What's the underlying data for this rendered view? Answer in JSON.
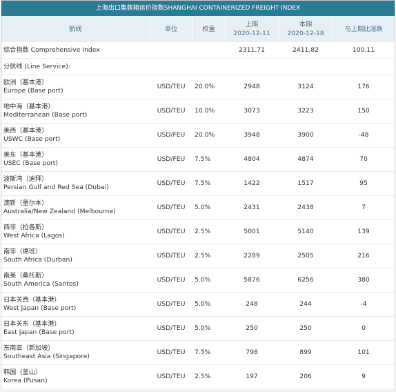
{
  "title": "上海出口集装箱运价指数SHANGHAI CONTAINERIZED FREIGHT INDEX",
  "headers": {
    "route": "航线",
    "unit": "单位",
    "weight": "权重",
    "prev_label": "上期",
    "prev_date": "2020-12-11",
    "curr_label": "本期",
    "curr_date": "2020-12-18",
    "change": "与上期比涨跌"
  },
  "comprehensive": {
    "name": "综合指数 Comprehensive Index",
    "prev": "2311.71",
    "curr": "2411.82",
    "change": "100.11"
  },
  "section_label": "分航线 (Line Service):",
  "routes": [
    {
      "zh": "欧洲（基本港）",
      "en": "Europe (Base port)",
      "unit": "USD/TEU",
      "weight": "20.0%",
      "prev": "2948",
      "curr": "3124",
      "change": "176"
    },
    {
      "zh": "地中海（基本港）",
      "en": "Mediterranean (Base port)",
      "unit": "USD/TEU",
      "weight": "10.0%",
      "prev": "3073",
      "curr": "3223",
      "change": "150"
    },
    {
      "zh": "美西（基本港）",
      "en": "USWC (Base port)",
      "unit": "USD/FEU",
      "weight": "20.0%",
      "prev": "3948",
      "curr": "3900",
      "change": "-48"
    },
    {
      "zh": "美东（基本港）",
      "en": "USEC (Base port)",
      "unit": "USD/FEU",
      "weight": "7.5%",
      "prev": "4804",
      "curr": "4874",
      "change": "70"
    },
    {
      "zh": "波斯湾（迪拜）",
      "en": "Persian Gulf and Red Sea (Dubai)",
      "unit": "USD/TEU",
      "weight": "7.5%",
      "prev": "1422",
      "curr": "1517",
      "change": "95"
    },
    {
      "zh": "澳新（墨尔本）",
      "en": "Australia/New Zealand (Melbourne)",
      "unit": "USD/TEU",
      "weight": "5.0%",
      "prev": "2431",
      "curr": "2438",
      "change": "7"
    },
    {
      "zh": "西非（拉各斯）",
      "en": "West Africa (Lagos)",
      "unit": "USD/TEU",
      "weight": "2.5%",
      "prev": "5001",
      "curr": "5140",
      "change": "139"
    },
    {
      "zh": "南非（德班）",
      "en": "South Africa (Durban)",
      "unit": "USD/TEU",
      "weight": "2.5%",
      "prev": "2289",
      "curr": "2505",
      "change": "216"
    },
    {
      "zh": "南美（桑托斯）",
      "en": "South America (Santos)",
      "unit": "USD/TEU",
      "weight": "5.0%",
      "prev": "5876",
      "curr": "6256",
      "change": "380"
    },
    {
      "zh": "日本关西（基本港）",
      "en": "West Japan (Base port)",
      "unit": "USD/TEU",
      "weight": "5.0%",
      "prev": "248",
      "curr": "244",
      "change": "-4"
    },
    {
      "zh": "日本关东（基本港）",
      "en": "East Japan (Base port)",
      "unit": "USD/TEU",
      "weight": "5.0%",
      "prev": "250",
      "curr": "250",
      "change": "0"
    },
    {
      "zh": "东南亚（新加坡）",
      "en": "Southeast Asia (Singapore)",
      "unit": "USD/TEU",
      "weight": "7.5%",
      "prev": "798",
      "curr": "899",
      "change": "101"
    },
    {
      "zh": "韩国（釜山）",
      "en": "Korea (Pusan)",
      "unit": "USD/TEU",
      "weight": "2.5%",
      "prev": "197",
      "curr": "206",
      "change": "9"
    }
  ]
}
